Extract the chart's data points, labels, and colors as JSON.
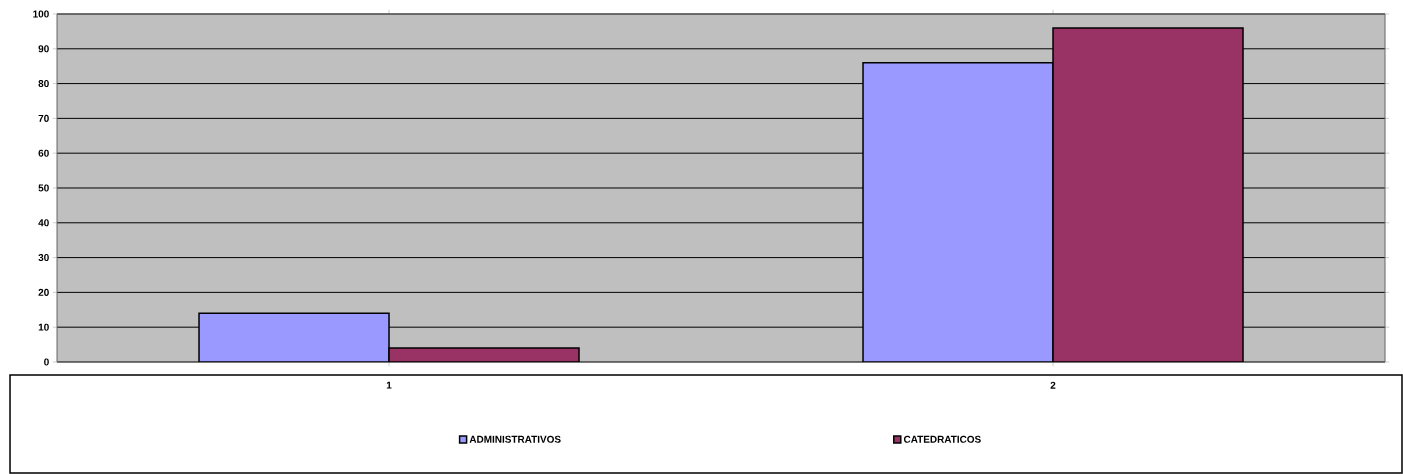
{
  "chart_data": {
    "type": "bar",
    "categories": [
      "1",
      "2"
    ],
    "series": [
      {
        "name": "ADMINISTRATIVOS",
        "color": "#9999ff",
        "values": [
          14,
          86
        ]
      },
      {
        "name": "CATEDRATICOS",
        "color": "#993366",
        "values": [
          4,
          96
        ]
      }
    ],
    "ylim": [
      0,
      100
    ],
    "yticks": [
      0,
      10,
      20,
      30,
      40,
      50,
      60,
      70,
      80,
      90,
      100
    ],
    "grid": "y",
    "legend": "bottom"
  }
}
